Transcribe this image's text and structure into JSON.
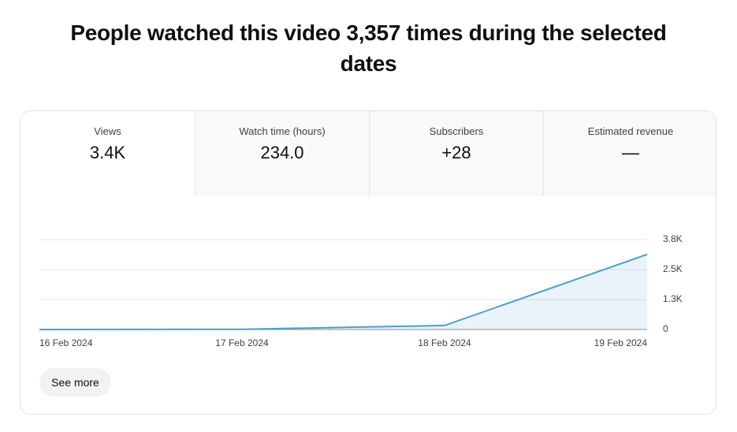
{
  "header": {
    "title": "People watched this video 3,357 times during the selected dates"
  },
  "tabs": [
    {
      "label": "Views",
      "value": "3.4K"
    },
    {
      "label": "Watch time (hours)",
      "value": "234.0"
    },
    {
      "label": "Subscribers",
      "value": "+28"
    },
    {
      "label": "Estimated revenue",
      "value": "—"
    }
  ],
  "chart_data": {
    "type": "area",
    "categories": [
      "16 Feb 2024",
      "17 Feb 2024",
      "18 Feb 2024",
      "19 Feb 2024"
    ],
    "values": [
      0,
      10,
      170,
      3177
    ],
    "color": "#4a9fcb",
    "ylim": [
      0,
      3800
    ],
    "yticks": [
      0,
      {
        "value": 1267,
        "label": "1.3K"
      },
      {
        "value": 2533,
        "label": "2.5K"
      },
      {
        "value": 3800,
        "label": "3.8K"
      }
    ],
    "grid": true
  },
  "button": {
    "label": "See more"
  }
}
